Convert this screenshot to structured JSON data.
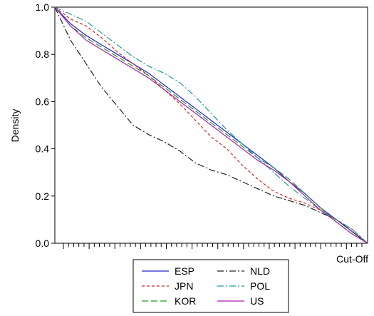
{
  "chart_data": {
    "type": "line",
    "title": "",
    "xlabel": "Cut-Off",
    "ylabel": "Density",
    "ylim": [
      0.0,
      1.0
    ],
    "xlim": [
      0,
      1
    ],
    "yticks": [
      "0.0",
      "0.2",
      "0.4",
      "0.6",
      "0.8",
      "1.0"
    ],
    "grid": false,
    "legend_position": "bottom",
    "x": [
      0,
      0.05,
      0.1,
      0.15,
      0.2,
      0.25,
      0.3,
      0.35,
      0.4,
      0.45,
      0.5,
      0.55,
      0.6,
      0.65,
      0.7,
      0.75,
      0.8,
      0.85,
      0.9,
      0.95,
      1.0
    ],
    "series": [
      {
        "name": "ESP",
        "color": "#2222cc",
        "dash": "solid",
        "values": [
          1.0,
          0.93,
          0.88,
          0.84,
          0.8,
          0.76,
          0.72,
          0.67,
          0.62,
          0.57,
          0.52,
          0.47,
          0.42,
          0.37,
          0.32,
          0.26,
          0.21,
          0.15,
          0.1,
          0.05,
          0.0
        ]
      },
      {
        "name": "JPN",
        "color": "#dd2222",
        "dash": "short",
        "values": [
          1.0,
          0.95,
          0.92,
          0.87,
          0.81,
          0.76,
          0.71,
          0.65,
          0.59,
          0.52,
          0.45,
          0.4,
          0.33,
          0.27,
          0.22,
          0.19,
          0.17,
          0.14,
          0.1,
          0.06,
          0.0
        ]
      },
      {
        "name": "KOR",
        "color": "#229922",
        "dash": "long",
        "values": [
          1.0,
          0.92,
          0.87,
          0.83,
          0.79,
          0.75,
          0.71,
          0.66,
          0.61,
          0.56,
          0.51,
          0.46,
          0.41,
          0.36,
          0.32,
          0.27,
          0.21,
          0.15,
          0.09,
          0.04,
          0.0
        ]
      },
      {
        "name": "NLD",
        "color": "#222222",
        "dash": "dashdot",
        "values": [
          1.0,
          0.86,
          0.76,
          0.66,
          0.58,
          0.5,
          0.46,
          0.43,
          0.39,
          0.34,
          0.31,
          0.29,
          0.26,
          0.23,
          0.2,
          0.18,
          0.16,
          0.13,
          0.1,
          0.05,
          0.0
        ]
      },
      {
        "name": "POL",
        "color": "#229999",
        "dash": "dashdot",
        "values": [
          1.0,
          0.97,
          0.94,
          0.89,
          0.84,
          0.79,
          0.75,
          0.72,
          0.68,
          0.62,
          0.55,
          0.48,
          0.42,
          0.36,
          0.3,
          0.24,
          0.19,
          0.14,
          0.1,
          0.06,
          0.0
        ]
      },
      {
        "name": "US",
        "color": "#aa22aa",
        "dash": "solid",
        "values": [
          1.0,
          0.92,
          0.86,
          0.82,
          0.78,
          0.74,
          0.7,
          0.65,
          0.6,
          0.55,
          0.5,
          0.45,
          0.4,
          0.35,
          0.31,
          0.26,
          0.2,
          0.14,
          0.09,
          0.04,
          0.0
        ]
      }
    ]
  }
}
